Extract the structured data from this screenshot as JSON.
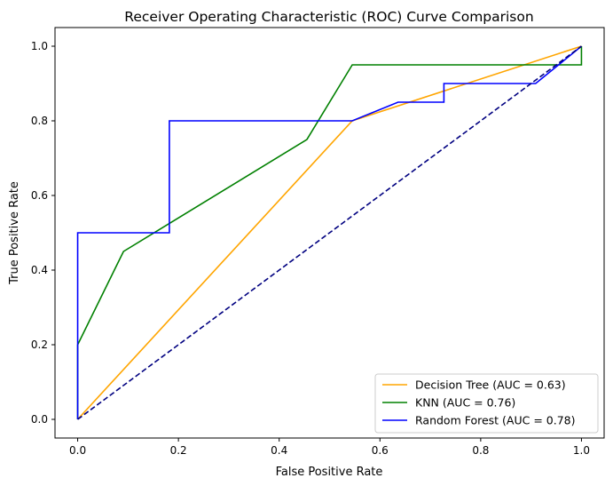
{
  "chart_data": {
    "type": "line",
    "title": "Receiver Operating Characteristic (ROC) Curve Comparison",
    "xlabel": "False Positive Rate",
    "ylabel": "True Positive Rate",
    "xlim": [
      -0.045,
      1.045
    ],
    "ylim": [
      -0.05,
      1.05
    ],
    "xticks": [
      "0.0",
      "0.2",
      "0.4",
      "0.6",
      "0.8",
      "1.0"
    ],
    "yticks": [
      "0.0",
      "0.2",
      "0.4",
      "0.6",
      "0.8",
      "1.0"
    ],
    "grid": false,
    "legend_position": "lower-right",
    "series": [
      {
        "name": "Decision Tree (AUC = 0.63)",
        "color": "#ffa500",
        "style": "solid",
        "points": [
          [
            0,
            0
          ],
          [
            0.545,
            0.8
          ],
          [
            1,
            1
          ]
        ]
      },
      {
        "name": "KNN (AUC = 0.76)",
        "color": "#008000",
        "style": "solid",
        "points": [
          [
            0,
            0
          ],
          [
            0,
            0.2
          ],
          [
            0.091,
            0.45
          ],
          [
            0.455,
            0.75
          ],
          [
            0.545,
            0.95
          ],
          [
            1,
            0.95
          ],
          [
            1,
            1
          ]
        ]
      },
      {
        "name": "Random Forest (AUC = 0.78)",
        "color": "#0000ff",
        "style": "solid",
        "points": [
          [
            0,
            0
          ],
          [
            0,
            0.5
          ],
          [
            0.182,
            0.5
          ],
          [
            0.182,
            0.8
          ],
          [
            0.545,
            0.8
          ],
          [
            0.636,
            0.85
          ],
          [
            0.727,
            0.85
          ],
          [
            0.727,
            0.9
          ],
          [
            0.909,
            0.9
          ],
          [
            1,
            1
          ]
        ]
      },
      {
        "color": "#000080",
        "style": "dashed",
        "points": [
          [
            0,
            0
          ],
          [
            1,
            1
          ]
        ]
      }
    ]
  }
}
